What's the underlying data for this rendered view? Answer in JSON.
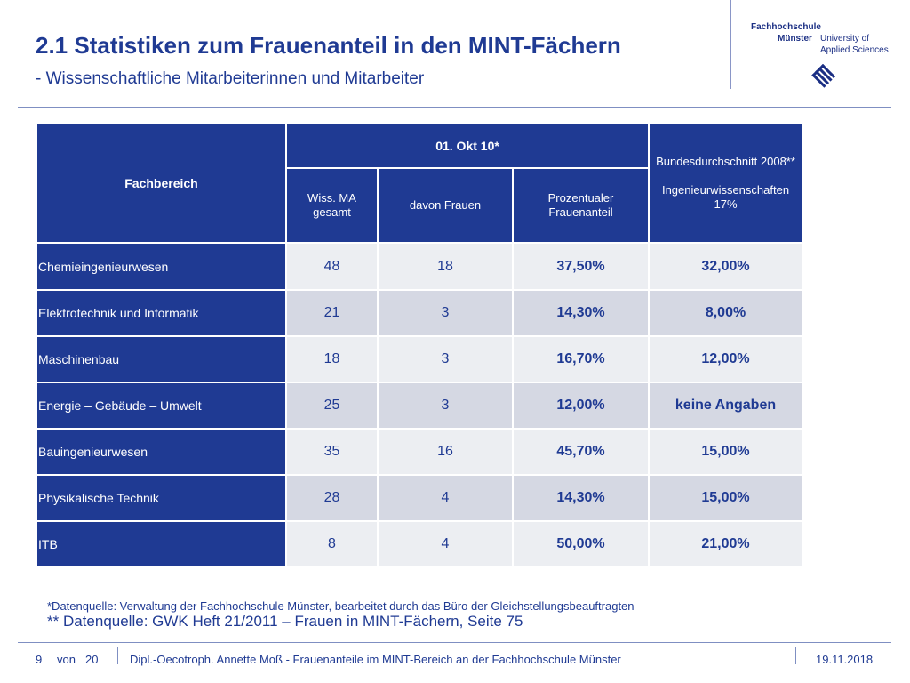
{
  "header": {
    "title": "2.1 Statistiken zum Frauenanteil in den MINT-Fächern",
    "subtitle": "- Wissenschaftliche Mitarbeiterinnen und Mitarbeiter"
  },
  "logo": {
    "line1": "Fachhochschule",
    "line2": "Münster",
    "line3": "University of",
    "line4": "Applied Sciences"
  },
  "table": {
    "col_fachbereich": "Fachbereich",
    "col_date": "01. Okt 10*",
    "col_bund_line1": "Bundesdurchschnitt 2008**",
    "col_bund_line2": "Ingenieurwissenschaften 17%",
    "sub_wiss": "Wiss. MA gesamt",
    "sub_frauen": "davon Frauen",
    "sub_prozent": "Prozentualer Frauenanteil",
    "rows": [
      {
        "label": "Chemieingenieurwesen",
        "gesamt": "48",
        "frauen": "18",
        "prozent": "37,50%",
        "bund": "32,00%"
      },
      {
        "label": "Elektrotechnik und Informatik",
        "gesamt": "21",
        "frauen": "3",
        "prozent": "14,30%",
        "bund": "8,00%"
      },
      {
        "label": "Maschinenbau",
        "gesamt": "18",
        "frauen": "3",
        "prozent": "16,70%",
        "bund": "12,00%"
      },
      {
        "label": "Energie – Gebäude – Umwelt",
        "gesamt": "25",
        "frauen": "3",
        "prozent": "12,00%",
        "bund": "keine Angaben"
      },
      {
        "label": "Bauingenieurwesen",
        "gesamt": "35",
        "frauen": "16",
        "prozent": "45,70%",
        "bund": "15,00%"
      },
      {
        "label": "Physikalische Technik",
        "gesamt": "28",
        "frauen": "4",
        "prozent": "14,30%",
        "bund": "15,00%"
      },
      {
        "label": "ITB",
        "gesamt": "8",
        "frauen": "4",
        "prozent": "50,00%",
        "bund": "21,00%"
      }
    ]
  },
  "notes": {
    "note1": "*Datenquelle: Verwaltung der Fachhochschule Münster, bearbeitet durch das Büro der Gleichstellungsbeauftragten",
    "note2": "** Datenquelle:  GWK Heft 21/2011 – Frauen in MINT-Fächern, Seite 75"
  },
  "footer": {
    "page": "9",
    "von": "von",
    "total": "20",
    "author": "Dipl.-Oecotroph. Annette Moß - Frauenanteile im MINT-Bereich an der Fachhochschule Münster",
    "date": "19.11.2018"
  },
  "colors": {
    "brand_blue": "#1f3a93",
    "cell_light": "#eceef2",
    "cell_mid": "#d5d8e3"
  }
}
